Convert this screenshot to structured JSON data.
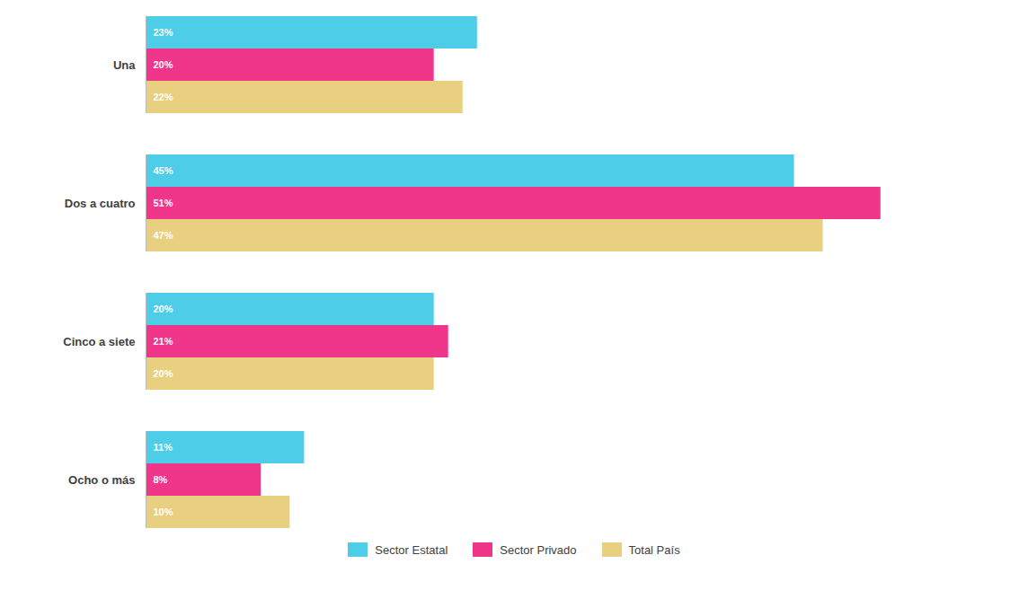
{
  "chart_data": {
    "type": "bar",
    "orientation": "horizontal",
    "categories": [
      "Una",
      "Dos a cuatro",
      "Cinco a siete",
      "Ocho o más"
    ],
    "series": [
      {
        "name": "Sector Estatal",
        "color": "#4DCDE8",
        "values": [
          23,
          45,
          20,
          11
        ],
        "value_labels": [
          "23%",
          "45%",
          "20%",
          "11%"
        ]
      },
      {
        "name": "Sector Privado",
        "color": "#F0368A",
        "values": [
          20,
          51,
          21,
          8
        ],
        "value_labels": [
          "20%",
          "51%",
          "21%",
          "8%"
        ]
      },
      {
        "name": "Total País",
        "color": "#E8D080",
        "values": [
          22,
          47,
          20,
          10
        ],
        "value_labels": [
          "22%",
          "47%",
          "20%",
          "10%"
        ]
      }
    ],
    "xlim": [
      0,
      58
    ],
    "data_labels": true,
    "tick_labels": "y",
    "legend": "bottom",
    "grid": false
  }
}
